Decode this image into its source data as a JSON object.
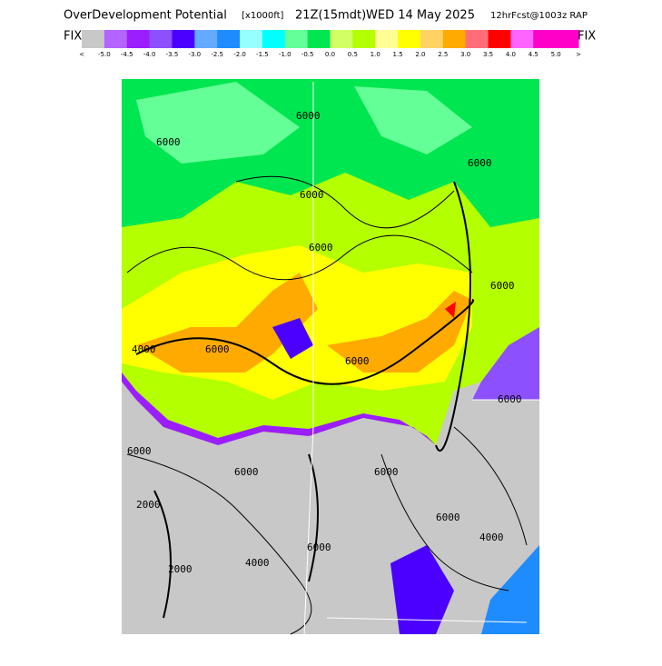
{
  "header": {
    "title": "OverDevelopment Potential",
    "units": "[x1000ft]",
    "valid": "21Z(15mdt)",
    "date": "WED 14 May 2025",
    "run": "12hrFcst@1003z RAP",
    "left_tag": "FIX",
    "right_tag": "FIX"
  },
  "colorbar": {
    "colors": [
      "#c8c8c8",
      "#b464ff",
      "#9b1eff",
      "#8c50ff",
      "#4b00ff",
      "#64aaff",
      "#1e8cff",
      "#96ffff",
      "#00ffff",
      "#64ff96",
      "#00e650",
      "#d2ff64",
      "#b4ff00",
      "#ffff96",
      "#ffff00",
      "#ffd264",
      "#ffaa00",
      "#ff6e78",
      "#ff0000",
      "#ff64ff",
      "#ff00c8",
      "#ff00c8"
    ],
    "labels": [
      "-5.0",
      "-4.5",
      "-4.0",
      "-3.5",
      "-3.0",
      "-2.5",
      "-2.0",
      "-1.5",
      "-1.0",
      "-0.5",
      "0.0",
      "0.5",
      "1.0",
      "1.5",
      "2.0",
      "2.5",
      "3.0",
      "3.5",
      "4.0",
      "4.5",
      "5.0"
    ],
    "low_arrow": "<",
    "high_arrow": ">"
  },
  "map": {
    "contour_labels": [
      "6000",
      "6000",
      "6000",
      "6000",
      "6000",
      "6000",
      "4000",
      "6000",
      "6000",
      "6000",
      "6000",
      "2000",
      "2000",
      "4000",
      "6000",
      "6000",
      "4000",
      "6000",
      "6000"
    ]
  }
}
